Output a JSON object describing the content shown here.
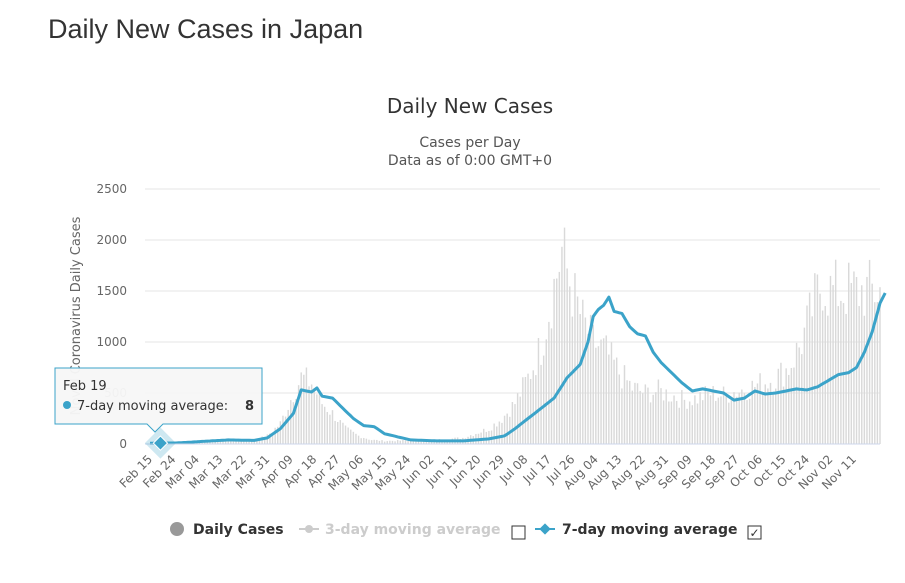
{
  "page": {
    "heading": "Daily New Cases in Japan"
  },
  "chart_data": {
    "type": "bar",
    "title": "Daily New Cases",
    "subtitle_line1": "Cases per Day",
    "subtitle_line2": "Data as of 0:00 GMT+0",
    "ylabel": "Novel Coronavirus Daily Cases",
    "ylim": [
      0,
      2500
    ],
    "yticks": [
      0,
      500,
      1000,
      1500,
      2000,
      2500
    ],
    "grid": true,
    "legend_position": "bottom",
    "x_tick_labels": [
      "Feb 15",
      "Feb 24",
      "Mar 04",
      "Mar 13",
      "Mar 22",
      "Mar 31",
      "Apr 09",
      "Apr 18",
      "Apr 27",
      "May 06",
      "May 15",
      "May 24",
      "Jun 02",
      "Jun 11",
      "Jun 20",
      "Jun 29",
      "Jul 08",
      "Jul 17",
      "Jul 26",
      "Aug 04",
      "Aug 13",
      "Aug 22",
      "Aug 31",
      "Sep 09",
      "Sep 18",
      "Sep 27",
      "Oct 06",
      "Oct 15",
      "Oct 24",
      "Nov 02",
      "Nov 11"
    ],
    "x_start_label": "Feb 15",
    "days_shown": 280,
    "series": [
      {
        "name": "Daily Cases",
        "color": "#d9d9d9",
        "keypoints": [
          [
            0,
            5
          ],
          [
            5,
            8
          ],
          [
            10,
            12
          ],
          [
            20,
            25
          ],
          [
            30,
            40
          ],
          [
            40,
            35
          ],
          [
            45,
            80
          ],
          [
            50,
            200
          ],
          [
            55,
            500
          ],
          [
            58,
            650
          ],
          [
            62,
            600
          ],
          [
            66,
            400
          ],
          [
            70,
            300
          ],
          [
            75,
            150
          ],
          [
            80,
            80
          ],
          [
            85,
            40
          ],
          [
            90,
            30
          ],
          [
            100,
            35
          ],
          [
            110,
            40
          ],
          [
            120,
            60
          ],
          [
            130,
            150
          ],
          [
            135,
            250
          ],
          [
            140,
            400
          ],
          [
            145,
            650
          ],
          [
            150,
            950
          ],
          [
            155,
            1550
          ],
          [
            158,
            1900
          ],
          [
            162,
            1500
          ],
          [
            166,
            1200
          ],
          [
            170,
            1000
          ],
          [
            175,
            900
          ],
          [
            180,
            700
          ],
          [
            185,
            550
          ],
          [
            190,
            500
          ],
          [
            195,
            520
          ],
          [
            200,
            480
          ],
          [
            205,
            430
          ],
          [
            210,
            450
          ],
          [
            215,
            500
          ],
          [
            220,
            480
          ],
          [
            225,
            520
          ],
          [
            230,
            550
          ],
          [
            235,
            600
          ],
          [
            240,
            650
          ],
          [
            245,
            750
          ],
          [
            250,
            1000
          ],
          [
            255,
            1400
          ],
          [
            258,
            1600
          ],
          [
            260,
            1500
          ]
        ],
        "noise_amplitude": 0.22
      },
      {
        "name": "3-day moving average",
        "color": "#cccccc",
        "visible": false,
        "values": []
      },
      {
        "name": "7-day moving average",
        "color": "#3ba3c9",
        "visible": true,
        "keypoints": [
          [
            0,
            8
          ],
          [
            10,
            10
          ],
          [
            20,
            25
          ],
          [
            30,
            40
          ],
          [
            40,
            35
          ],
          [
            45,
            60
          ],
          [
            50,
            150
          ],
          [
            55,
            300
          ],
          [
            58,
            530
          ],
          [
            62,
            510
          ],
          [
            64,
            550
          ],
          [
            66,
            470
          ],
          [
            70,
            450
          ],
          [
            74,
            350
          ],
          [
            78,
            250
          ],
          [
            82,
            180
          ],
          [
            86,
            170
          ],
          [
            90,
            100
          ],
          [
            95,
            70
          ],
          [
            100,
            40
          ],
          [
            110,
            30
          ],
          [
            120,
            30
          ],
          [
            130,
            50
          ],
          [
            136,
            80
          ],
          [
            140,
            150
          ],
          [
            145,
            250
          ],
          [
            150,
            350
          ],
          [
            155,
            450
          ],
          [
            160,
            650
          ],
          [
            165,
            780
          ],
          [
            168,
            1000
          ],
          [
            170,
            1250
          ],
          [
            172,
            1320
          ],
          [
            174,
            1360
          ],
          [
            176,
            1440
          ],
          [
            178,
            1300
          ],
          [
            181,
            1280
          ],
          [
            184,
            1150
          ],
          [
            187,
            1080
          ],
          [
            190,
            1060
          ],
          [
            193,
            900
          ],
          [
            196,
            800
          ],
          [
            200,
            700
          ],
          [
            204,
            600
          ],
          [
            208,
            520
          ],
          [
            212,
            540
          ],
          [
            216,
            520
          ],
          [
            220,
            500
          ],
          [
            224,
            430
          ],
          [
            228,
            450
          ],
          [
            232,
            520
          ],
          [
            236,
            490
          ],
          [
            240,
            500
          ],
          [
            244,
            520
          ],
          [
            248,
            540
          ],
          [
            252,
            530
          ],
          [
            256,
            560
          ],
          [
            260,
            620
          ],
          [
            264,
            680
          ],
          [
            268,
            700
          ],
          [
            271,
            750
          ],
          [
            274,
            900
          ],
          [
            277,
            1100
          ],
          [
            280,
            1380
          ],
          [
            282,
            1480
          ]
        ]
      }
    ],
    "tooltip": {
      "date": "Feb 19",
      "label": "7-day moving average:",
      "value": "8",
      "day": 4
    }
  },
  "legend": {
    "daily_cases": "Daily Cases",
    "three_day": "3-day moving average",
    "seven_day": "7-day moving average",
    "three_day_checked": false,
    "seven_day_checked": true,
    "checkmark": "✓"
  }
}
